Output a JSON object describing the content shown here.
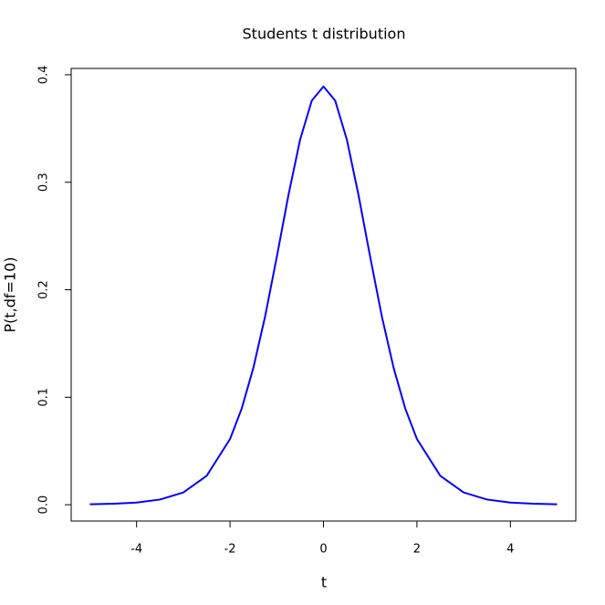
{
  "chart_data": {
    "type": "line",
    "title": "Students t distribution",
    "x_label": "t",
    "y_label": "P(t,df=10)",
    "x": [
      -5,
      -4.5,
      -4,
      -3.5,
      -3,
      -2.5,
      -2,
      -1.75,
      -1.5,
      -1.25,
      -1,
      -0.75,
      -0.5,
      -0.25,
      0,
      0.25,
      0.5,
      0.75,
      1,
      1.25,
      1.5,
      1.75,
      2,
      2.5,
      3,
      3.5,
      4,
      4.5,
      5
    ],
    "series": [
      {
        "color": "#0000ff",
        "values": [
          0.0004,
          0.0009,
          0.002,
          0.0048,
          0.0114,
          0.0269,
          0.0611,
          0.0895,
          0.1275,
          0.175,
          0.2304,
          0.288,
          0.3397,
          0.376,
          0.3891,
          0.376,
          0.3397,
          0.288,
          0.2304,
          0.175,
          0.1275,
          0.0895,
          0.0611,
          0.0269,
          0.0114,
          0.0048,
          0.002,
          0.0009,
          0.0004
        ]
      }
    ],
    "xlim": [
      -5.4,
      5.4
    ],
    "ylim": [
      -0.0152,
      0.4059
    ],
    "xticks": [
      -4,
      -2,
      0,
      2,
      4
    ],
    "yticks": [
      {
        "value": 0,
        "label": "0.0"
      },
      0.1,
      0.2,
      0.3,
      0.4
    ]
  }
}
